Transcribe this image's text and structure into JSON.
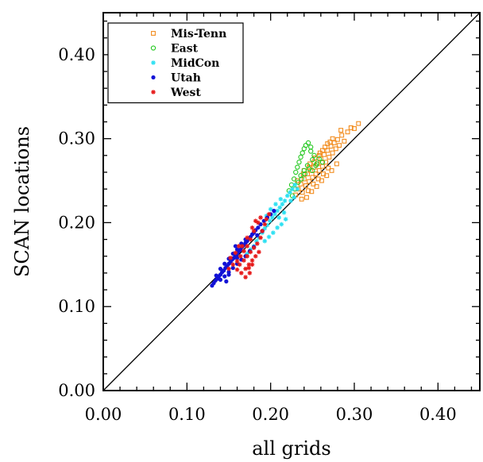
{
  "chart_data": {
    "type": "scatter",
    "title": "",
    "xlabel": "all grids",
    "ylabel": "SCAN locations",
    "xlim": [
      0,
      0.45
    ],
    "ylim": [
      0,
      0.45
    ],
    "xticks": [
      "0.00",
      "0.10",
      "0.20",
      "0.30",
      "0.40"
    ],
    "yticks": [
      "0.00",
      "0.10",
      "0.20",
      "0.30",
      "0.40"
    ],
    "grid": false,
    "legend_position": "top-left",
    "reference_line": "y = x",
    "series": [
      {
        "name": "Mis-Tenn",
        "marker": "square",
        "color": "#f28c1e",
        "points": [
          [
            0.23,
            0.233
          ],
          [
            0.233,
            0.24
          ],
          [
            0.236,
            0.246
          ],
          [
            0.238,
            0.236
          ],
          [
            0.24,
            0.252
          ],
          [
            0.242,
            0.244
          ],
          [
            0.244,
            0.258
          ],
          [
            0.246,
            0.249
          ],
          [
            0.248,
            0.262
          ],
          [
            0.25,
            0.254
          ],
          [
            0.252,
            0.266
          ],
          [
            0.254,
            0.258
          ],
          [
            0.256,
            0.27
          ],
          [
            0.258,
            0.262
          ],
          [
            0.26,
            0.276
          ],
          [
            0.262,
            0.267
          ],
          [
            0.264,
            0.281
          ],
          [
            0.266,
            0.272
          ],
          [
            0.268,
            0.286
          ],
          [
            0.27,
            0.278
          ],
          [
            0.272,
            0.291
          ],
          [
            0.274,
            0.283
          ],
          [
            0.276,
            0.295
          ],
          [
            0.278,
            0.288
          ],
          [
            0.28,
            0.299
          ],
          [
            0.282,
            0.292
          ],
          [
            0.285,
            0.304
          ],
          [
            0.288,
            0.297
          ],
          [
            0.292,
            0.308
          ],
          [
            0.296,
            0.313
          ],
          [
            0.3,
            0.312
          ],
          [
            0.305,
            0.318
          ],
          [
            0.245,
            0.238
          ],
          [
            0.251,
            0.246
          ],
          [
            0.257,
            0.252
          ],
          [
            0.263,
            0.258
          ],
          [
            0.269,
            0.265
          ],
          [
            0.24,
            0.262
          ],
          [
            0.247,
            0.27
          ],
          [
            0.253,
            0.277
          ],
          [
            0.259,
            0.283
          ],
          [
            0.265,
            0.29
          ],
          [
            0.271,
            0.296
          ],
          [
            0.237,
            0.228
          ],
          [
            0.243,
            0.23
          ],
          [
            0.249,
            0.237
          ],
          [
            0.255,
            0.243
          ],
          [
            0.261,
            0.25
          ],
          [
            0.267,
            0.256
          ],
          [
            0.273,
            0.262
          ],
          [
            0.279,
            0.27
          ],
          [
            0.232,
            0.25
          ],
          [
            0.239,
            0.258
          ],
          [
            0.246,
            0.266
          ],
          [
            0.252,
            0.272
          ],
          [
            0.258,
            0.28
          ],
          [
            0.262,
            0.286
          ],
          [
            0.268,
            0.294
          ],
          [
            0.274,
            0.3
          ],
          [
            0.284,
            0.31
          ]
        ]
      },
      {
        "name": "East",
        "marker": "circle",
        "color": "#22c81e",
        "points": [
          [
            0.222,
            0.238
          ],
          [
            0.225,
            0.245
          ],
          [
            0.228,
            0.252
          ],
          [
            0.23,
            0.26
          ],
          [
            0.232,
            0.266
          ],
          [
            0.234,
            0.272
          ],
          [
            0.236,
            0.278
          ],
          [
            0.238,
            0.283
          ],
          [
            0.24,
            0.288
          ],
          [
            0.242,
            0.292
          ],
          [
            0.245,
            0.295
          ],
          [
            0.248,
            0.285
          ],
          [
            0.25,
            0.275
          ],
          [
            0.252,
            0.28
          ],
          [
            0.255,
            0.27
          ],
          [
            0.258,
            0.276
          ],
          [
            0.236,
            0.256
          ],
          [
            0.24,
            0.262
          ],
          [
            0.244,
            0.268
          ],
          [
            0.226,
            0.232
          ],
          [
            0.229,
            0.24
          ],
          [
            0.233,
            0.248
          ],
          [
            0.237,
            0.252
          ],
          [
            0.241,
            0.258
          ],
          [
            0.246,
            0.264
          ],
          [
            0.25,
            0.262
          ],
          [
            0.254,
            0.268
          ],
          [
            0.262,
            0.272
          ],
          [
            0.248,
            0.29
          ]
        ]
      },
      {
        "name": "MidCon",
        "marker": "star",
        "color": "#2ee0f2",
        "points": [
          [
            0.172,
            0.163
          ],
          [
            0.176,
            0.168
          ],
          [
            0.18,
            0.172
          ],
          [
            0.183,
            0.178
          ],
          [
            0.186,
            0.182
          ],
          [
            0.19,
            0.188
          ],
          [
            0.193,
            0.193
          ],
          [
            0.196,
            0.197
          ],
          [
            0.199,
            0.202
          ],
          [
            0.202,
            0.206
          ],
          [
            0.205,
            0.21
          ],
          [
            0.208,
            0.214
          ],
          [
            0.211,
            0.218
          ],
          [
            0.214,
            0.222
          ],
          [
            0.217,
            0.226
          ],
          [
            0.22,
            0.232
          ],
          [
            0.223,
            0.236
          ],
          [
            0.226,
            0.24
          ],
          [
            0.229,
            0.245
          ],
          [
            0.232,
            0.24
          ],
          [
            0.218,
            0.204
          ],
          [
            0.213,
            0.198
          ],
          [
            0.208,
            0.194
          ],
          [
            0.203,
            0.188
          ],
          [
            0.198,
            0.183
          ],
          [
            0.193,
            0.178
          ],
          [
            0.2,
            0.216
          ],
          [
            0.206,
            0.222
          ],
          [
            0.212,
            0.228
          ],
          [
            0.224,
            0.226
          ],
          [
            0.228,
            0.23
          ],
          [
            0.216,
            0.212
          ],
          [
            0.21,
            0.206
          ],
          [
            0.188,
            0.198
          ],
          [
            0.195,
            0.208
          ]
        ]
      },
      {
        "name": "Utah",
        "marker": "dot",
        "color": "#1212d6",
        "points": [
          [
            0.13,
            0.125
          ],
          [
            0.132,
            0.128
          ],
          [
            0.134,
            0.131
          ],
          [
            0.136,
            0.133
          ],
          [
            0.138,
            0.136
          ],
          [
            0.14,
            0.138
          ],
          [
            0.142,
            0.141
          ],
          [
            0.144,
            0.143
          ],
          [
            0.146,
            0.146
          ],
          [
            0.148,
            0.148
          ],
          [
            0.15,
            0.151
          ],
          [
            0.152,
            0.153
          ],
          [
            0.154,
            0.156
          ],
          [
            0.156,
            0.158
          ],
          [
            0.158,
            0.161
          ],
          [
            0.16,
            0.163
          ],
          [
            0.162,
            0.166
          ],
          [
            0.164,
            0.168
          ],
          [
            0.166,
            0.171
          ],
          [
            0.168,
            0.173
          ],
          [
            0.17,
            0.176
          ],
          [
            0.172,
            0.178
          ],
          [
            0.174,
            0.181
          ],
          [
            0.176,
            0.183
          ],
          [
            0.178,
            0.186
          ],
          [
            0.18,
            0.188
          ],
          [
            0.182,
            0.191
          ],
          [
            0.185,
            0.194
          ],
          [
            0.188,
            0.198
          ],
          [
            0.192,
            0.202
          ],
          [
            0.196,
            0.206
          ],
          [
            0.2,
            0.21
          ],
          [
            0.204,
            0.214
          ],
          [
            0.14,
            0.132
          ],
          [
            0.145,
            0.136
          ],
          [
            0.15,
            0.141
          ],
          [
            0.155,
            0.146
          ],
          [
            0.16,
            0.151
          ],
          [
            0.165,
            0.156
          ],
          [
            0.17,
            0.16
          ],
          [
            0.175,
            0.166
          ],
          [
            0.18,
            0.171
          ],
          [
            0.135,
            0.137
          ],
          [
            0.14,
            0.145
          ],
          [
            0.145,
            0.151
          ],
          [
            0.15,
            0.157
          ],
          [
            0.155,
            0.163
          ],
          [
            0.16,
            0.168
          ],
          [
            0.165,
            0.175
          ],
          [
            0.17,
            0.18
          ],
          [
            0.15,
            0.138
          ],
          [
            0.147,
            0.13
          ],
          [
            0.16,
            0.158
          ],
          [
            0.158,
            0.172
          ],
          [
            0.184,
            0.185
          ],
          [
            0.19,
            0.19
          ]
        ]
      },
      {
        "name": "West",
        "marker": "star",
        "color": "#e61a1a",
        "points": [
          [
            0.16,
            0.144
          ],
          [
            0.163,
            0.15
          ],
          [
            0.165,
            0.14
          ],
          [
            0.168,
            0.155
          ],
          [
            0.17,
            0.145
          ],
          [
            0.172,
            0.16
          ],
          [
            0.174,
            0.15
          ],
          [
            0.176,
            0.165
          ],
          [
            0.178,
            0.155
          ],
          [
            0.18,
            0.17
          ],
          [
            0.182,
            0.16
          ],
          [
            0.184,
            0.175
          ],
          [
            0.186,
            0.165
          ],
          [
            0.188,
            0.182
          ],
          [
            0.19,
            0.19
          ],
          [
            0.193,
            0.198
          ],
          [
            0.195,
            0.204
          ],
          [
            0.198,
            0.21
          ],
          [
            0.185,
            0.2
          ],
          [
            0.18,
            0.19
          ],
          [
            0.176,
            0.18
          ],
          [
            0.172,
            0.172
          ],
          [
            0.168,
            0.166
          ],
          [
            0.164,
            0.16
          ],
          [
            0.16,
            0.154
          ],
          [
            0.155,
            0.15
          ],
          [
            0.15,
            0.145
          ],
          [
            0.17,
            0.135
          ],
          [
            0.175,
            0.14
          ],
          [
            0.166,
            0.172
          ],
          [
            0.172,
            0.182
          ],
          [
            0.178,
            0.194
          ],
          [
            0.182,
            0.202
          ],
          [
            0.188,
            0.206
          ],
          [
            0.158,
            0.164
          ],
          [
            0.162,
            0.172
          ],
          [
            0.152,
            0.158
          ],
          [
            0.174,
            0.146
          ],
          [
            0.178,
            0.15
          ]
        ]
      }
    ]
  }
}
